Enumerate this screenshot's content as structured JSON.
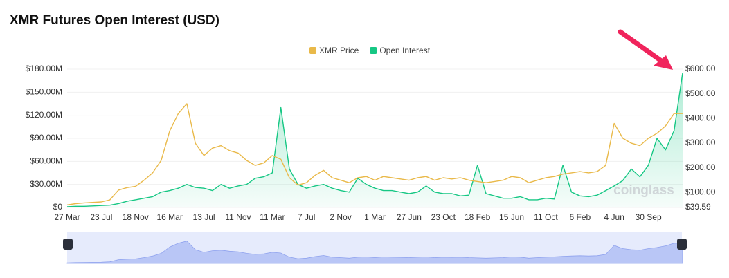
{
  "chart_data": {
    "type": "line",
    "title": "XMR Futures Open Interest (USD)",
    "watermark": "coinglass",
    "legend": "top",
    "grid": true,
    "categories": [
      "27 Mar",
      null,
      null,
      null,
      "23 Jul",
      null,
      null,
      null,
      "18 Nov",
      null,
      null,
      null,
      "16 Mar",
      null,
      null,
      null,
      "13 Jul",
      null,
      null,
      null,
      "11 Nov",
      null,
      null,
      null,
      "11 Mar",
      null,
      null,
      null,
      "7 Jul",
      null,
      null,
      null,
      "2 Nov",
      null,
      null,
      null,
      "1 Mar",
      null,
      null,
      null,
      "27 Jun",
      null,
      null,
      null,
      "23 Oct",
      null,
      null,
      null,
      "18 Feb",
      null,
      null,
      null,
      "15 Jun",
      null,
      null,
      null,
      "11 Oct",
      null,
      null,
      null,
      "6 Feb",
      null,
      null,
      null,
      "4 Jun",
      null,
      null,
      null,
      "30 Sep",
      null,
      null,
      null,
      null
    ],
    "series": [
      {
        "name": "XMR Price",
        "color": "#e9b949",
        "axis": "y2",
        "values": [
          50,
          55,
          58,
          60,
          62,
          70,
          110,
          120,
          125,
          150,
          180,
          230,
          350,
          420,
          460,
          300,
          250,
          280,
          290,
          270,
          260,
          230,
          210,
          220,
          250,
          235,
          160,
          130,
          140,
          170,
          190,
          160,
          150,
          140,
          160,
          165,
          150,
          165,
          160,
          155,
          150,
          160,
          165,
          150,
          160,
          155,
          160,
          150,
          145,
          140,
          145,
          150,
          165,
          160,
          140,
          150,
          160,
          165,
          175,
          180,
          185,
          180,
          185,
          210,
          380,
          320,
          300,
          290,
          320,
          340,
          370,
          420,
          420
        ]
      },
      {
        "name": "Open Interest",
        "color": "#16c784",
        "axis": "y",
        "values": [
          1000000,
          1500000,
          1500000,
          2000000,
          2500000,
          3000000,
          5000000,
          8000000,
          10000000,
          12000000,
          14000000,
          20000000,
          22000000,
          25000000,
          30000000,
          26000000,
          25000000,
          22000000,
          30000000,
          25000000,
          28000000,
          30000000,
          38000000,
          40000000,
          45000000,
          130000000,
          50000000,
          30000000,
          25000000,
          28000000,
          30000000,
          25000000,
          22000000,
          20000000,
          38000000,
          30000000,
          25000000,
          22000000,
          22000000,
          20000000,
          18000000,
          20000000,
          28000000,
          20000000,
          18000000,
          18000000,
          15000000,
          16000000,
          55000000,
          18000000,
          15000000,
          12000000,
          12000000,
          14000000,
          10000000,
          10000000,
          12000000,
          11000000,
          55000000,
          20000000,
          15000000,
          14000000,
          16000000,
          22000000,
          28000000,
          35000000,
          50000000,
          40000000,
          55000000,
          90000000,
          75000000,
          100000000,
          175000000
        ]
      }
    ],
    "ylim": [
      0,
      180000000
    ],
    "yticks": [
      {
        "value": 0,
        "label": "$0"
      },
      {
        "value": 30000000,
        "label": "$30.00M"
      },
      {
        "value": 60000000,
        "label": "$60.00M"
      },
      {
        "value": 90000000,
        "label": "$90.00M"
      },
      {
        "value": 120000000,
        "label": "$120.00M"
      },
      {
        "value": 150000000,
        "label": "$150.00M"
      },
      {
        "value": 180000000,
        "label": "$180.00M"
      }
    ],
    "y2lim": [
      39.59,
      600
    ],
    "y2ticks": [
      {
        "value": 39.59,
        "label": "$39.59"
      },
      {
        "value": 100,
        "label": "$100.00"
      },
      {
        "value": 200,
        "label": "$200.00"
      },
      {
        "value": 300,
        "label": "$300.00"
      },
      {
        "value": 400,
        "label": "$400.00"
      },
      {
        "value": 500,
        "label": "$500.00"
      },
      {
        "value": 600,
        "label": "$600.00"
      }
    ]
  }
}
